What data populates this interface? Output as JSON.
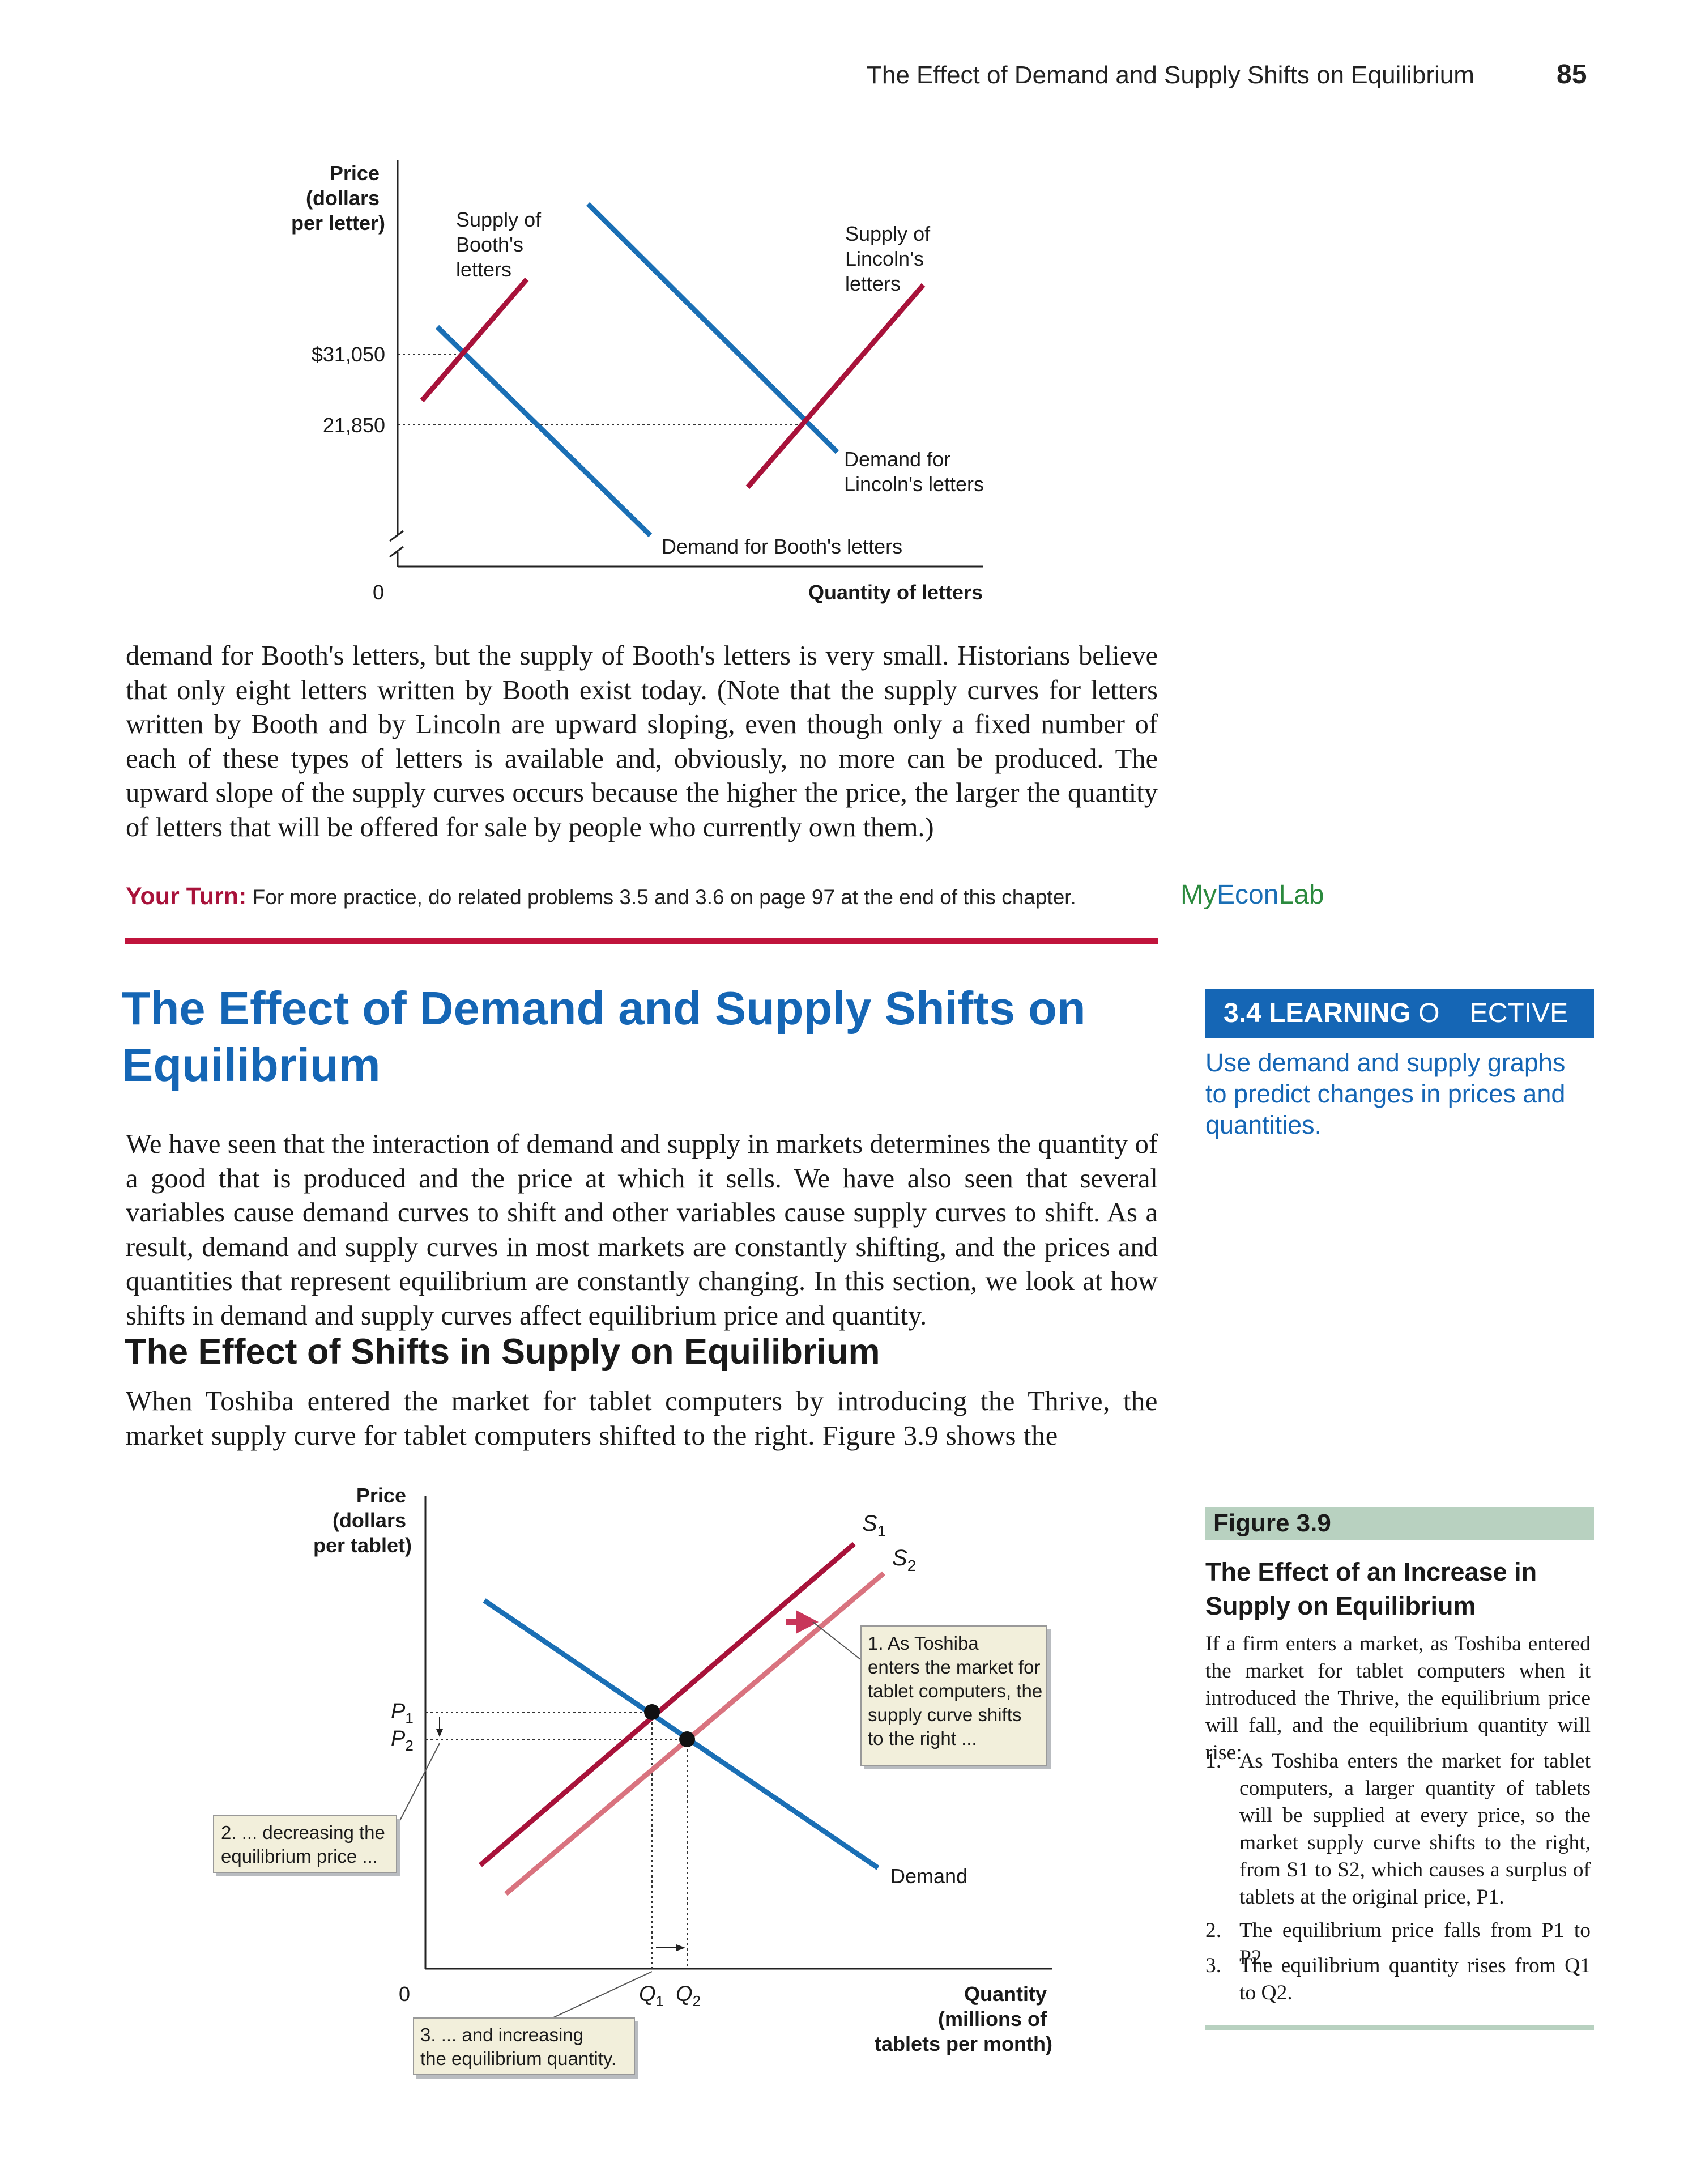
{
  "header": {
    "running_title": "The Effect of Demand and Supply Shifts on Equilibrium",
    "page_number": "85"
  },
  "figure_letters": {
    "chart_data": {
      "type": "line",
      "title": "",
      "ylabel": "Price\n(dollars\nper letter)",
      "xlabel": "Quantity of letters",
      "y_ticks": [
        "$31,050",
        "21,850"
      ],
      "x_origin_label": "0",
      "series": [
        {
          "name": "Supply of Booth's letters",
          "color": "#a8123a"
        },
        {
          "name": "Demand for Booth's letters",
          "color": "#1a6fb5"
        },
        {
          "name": "Supply of Lincoln's letters",
          "color": "#a8123a"
        },
        {
          "name": "Demand for Lincoln's letters",
          "color": "#1a6fb5"
        }
      ],
      "equilibria": [
        {
          "curves": "Booth",
          "price": 31050
        },
        {
          "curves": "Lincoln",
          "price": 21850
        }
      ]
    },
    "labels": {
      "y_axis": [
        "Price",
        "(dollars",
        "per letter)"
      ],
      "supply_booth": [
        "Supply of",
        "Booth's",
        "letters"
      ],
      "supply_lincoln": [
        "Supply of",
        "Lincoln's",
        "letters"
      ],
      "demand_lincoln": [
        "Demand for",
        "Lincoln's letters"
      ],
      "demand_booth": "Demand for Booth's letters",
      "x_axis": "Quantity of letters",
      "origin": "0",
      "price_high": "$31,050",
      "price_low": "21,850"
    }
  },
  "paragraphs": {
    "p1": "demand for Booth's letters, but the supply of Booth's letters is very small. Historians believe that only eight letters written by Booth exist today. (Note that the supply curves for letters written by Booth and by Lincoln are upward sloping, even though only a fixed number of each of these types of letters is available and, obviously, no more can be produced. The upward slope of the supply curves occurs because the higher the price, the larger the quantity of letters that will be offered for sale by people who currently own them.)",
    "p2": "We have seen that the interaction of demand and supply in markets determines the quantity of a good that is produced and the price at which it sells. We have also seen that several variables cause demand curves to shift and other variables cause supply curves to shift. As a result, demand and supply curves in most markets are constantly shifting, and the prices and quantities that represent equilibrium are constantly changing. In this section, we look at how shifts in demand and supply curves affect equilibrium price and quantity.",
    "p3": "When Toshiba entered the market for tablet computers by introducing the Thrive, the market supply curve for tablet computers shifted to the right. Figure 3.9 shows the"
  },
  "your_turn": {
    "label": "Your Turn:",
    "text": " For more practice, do related problems 3.5 and 3.6 on page 97 at the end of this chapter."
  },
  "myeconlab": {
    "my": "My",
    "econ": "Econ",
    "lab": "Lab"
  },
  "section": {
    "title": "The Effect of Demand and Supply Shifts on Equilibrium",
    "subsection_title": "The Effect of Shifts in Supply on Equilibrium"
  },
  "learning_objective": {
    "number": "3.4 LEARNING",
    "word": "O    ECTIVE",
    "text": "Use demand and supply graphs to predict changes in prices and quantities."
  },
  "figure_3_9": {
    "label": "Figure 3.9",
    "title": "The Effect of an Increase in Supply on Equilibrium",
    "description": "If a firm enters a market, as Toshiba entered the market for tablet computers when it introduced the Thrive, the equilibrium price will fall, and the equilibrium quantity will rise:",
    "items": [
      {
        "num": "1.",
        "text": "As Toshiba enters the market for tablet computers, a larger quantity of tablets will be supplied at every price, so the market supply curve shifts to the right, from S1 to S2, which causes a surplus of tablets at the original price, P1."
      },
      {
        "num": "2.",
        "text": "The equilibrium price falls from P1 to P2."
      },
      {
        "num": "3.",
        "text": "The equilibrium quantity rises from Q1 to Q2."
      }
    ],
    "chart_data": {
      "type": "line",
      "title": "",
      "ylabel": "Price\n(dollars\nper tablet)",
      "xlabel": "Quantity\n(millions of\ntablets per month)",
      "x_origin_label": "0",
      "series": [
        {
          "name": "S1",
          "color": "#a8123a"
        },
        {
          "name": "S2",
          "color": "#d9737f"
        },
        {
          "name": "Demand",
          "color": "#1a6fb5"
        }
      ],
      "equilibria": [
        {
          "price": "P1",
          "quantity": "Q1"
        },
        {
          "price": "P2",
          "quantity": "Q2"
        }
      ],
      "annotations": [
        "1. As Toshiba enters the market for tablet computers, the supply curve shifts to the right ...",
        "2. ... decreasing the equilibrium price ...",
        "3. ... and increasing the equilibrium quantity."
      ]
    },
    "labels": {
      "y_axis": [
        "Price",
        "(dollars",
        "per tablet)"
      ],
      "x_axis": [
        "Quantity",
        "(millions of",
        "tablets per month)"
      ],
      "origin": "0",
      "s1": "S",
      "s1_sub": "1",
      "s2": "S",
      "s2_sub": "2",
      "p1": "P",
      "p1_sub": "1",
      "p2": "P",
      "p2_sub": "2",
      "q1": "Q",
      "q1_sub": "1",
      "q2": "Q",
      "q2_sub": "2",
      "demand": "Demand",
      "callout_1": [
        "1. As Toshiba",
        "enters the market for",
        "tablet computers, the",
        "supply curve shifts",
        "to the right ..."
      ],
      "callout_2": [
        "2. ... decreasing the",
        "equilibrium price ..."
      ],
      "callout_3": [
        "3. ... and increasing",
        "the equilibrium quantity."
      ]
    }
  }
}
